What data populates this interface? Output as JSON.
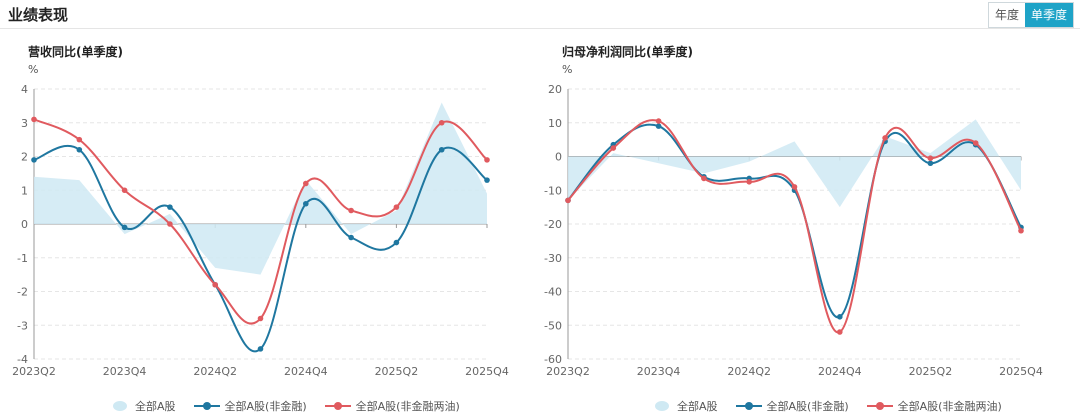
{
  "header": {
    "title": "业绩表现",
    "toggle": [
      "年度",
      "单季度"
    ],
    "toggle_active": 1
  },
  "colors": {
    "area": "#cfe9f3",
    "series1": "#1f77a0",
    "series2": "#e05a5f",
    "accent": "#1ea3c7"
  },
  "chart_data": [
    {
      "type": "line",
      "title": "营收同比(单季度)",
      "ylabel": "%",
      "ylim": [
        -4,
        4
      ],
      "yticks": [
        4,
        3,
        2,
        1,
        0,
        -1,
        -2,
        -3,
        -4
      ],
      "xticks": [
        "2023Q2",
        "2023Q4",
        "2024Q2",
        "2024Q4",
        "2025Q2",
        "2025Q4"
      ],
      "x": [
        "2023Q2",
        "2023Q3",
        "2023Q4",
        "2024Q1",
        "2024Q2",
        "2024Q3",
        "2024Q4",
        "2025Q1",
        "2025Q2",
        "2025Q3",
        "2025Q4"
      ],
      "series": [
        {
          "name": "全部A股",
          "kind": "area",
          "values": [
            1.4,
            1.3,
            -0.3,
            0.3,
            -1.3,
            -1.5,
            1.3,
            -0.3,
            0.4,
            3.6,
            0.9
          ]
        },
        {
          "name": "全部A股(非金融)",
          "kind": "line",
          "values": [
            1.9,
            2.2,
            -0.1,
            0.5,
            -1.8,
            -3.7,
            0.6,
            -0.4,
            -0.55,
            2.2,
            1.3
          ]
        },
        {
          "name": "全部A股(非金融两油)",
          "kind": "line",
          "values": [
            3.1,
            2.5,
            1.0,
            0.0,
            -1.8,
            -2.8,
            1.2,
            0.4,
            0.5,
            3.0,
            1.9
          ]
        }
      ],
      "grid": true,
      "legend": "bottom-center"
    },
    {
      "type": "line",
      "title": "归母净利润同比(单季度)",
      "ylabel": "%",
      "ylim": [
        -60,
        20
      ],
      "yticks": [
        20,
        10,
        0,
        -10,
        -20,
        -30,
        -40,
        -50,
        -60
      ],
      "xticks": [
        "2023Q2",
        "2023Q4",
        "2024Q2",
        "2024Q4",
        "2025Q2",
        "2025Q4"
      ],
      "x": [
        "2023Q2",
        "2023Q3",
        "2023Q4",
        "2024Q1",
        "2024Q2",
        "2024Q3",
        "2024Q4",
        "2025Q1",
        "2025Q2",
        "2025Q3",
        "2025Q4"
      ],
      "series": [
        {
          "name": "全部A股",
          "kind": "area",
          "values": [
            -13,
            1,
            -2,
            -5,
            -1.5,
            4.5,
            -15,
            6,
            1,
            11,
            -10
          ]
        },
        {
          "name": "全部A股(非金融)",
          "kind": "line",
          "values": [
            -13,
            3.5,
            9,
            -6,
            -6.5,
            -10,
            -47.5,
            4.5,
            -2,
            3.5,
            -21
          ]
        },
        {
          "name": "全部A股(非金融两油)",
          "kind": "line",
          "values": [
            -13,
            2.5,
            10.5,
            -6.5,
            -7.5,
            -9,
            -52,
            5.5,
            -0.5,
            4,
            -22
          ]
        }
      ],
      "grid": true,
      "legend": "bottom-center"
    }
  ]
}
